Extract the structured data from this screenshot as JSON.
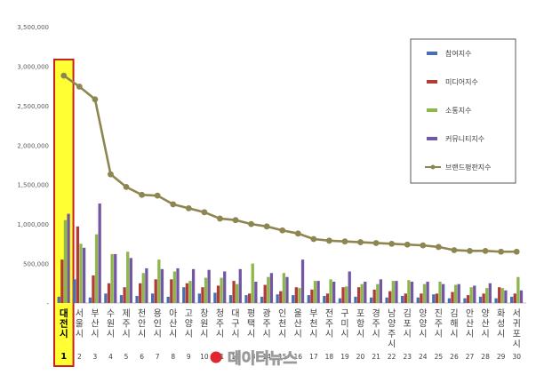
{
  "chart_data": {
    "type": "bar",
    "ylim": [
      0,
      3500000
    ],
    "yticks": [
      {
        "value": 0,
        "label": "-"
      },
      {
        "value": 500000,
        "label": "500,000"
      },
      {
        "value": 1000000,
        "label": "1,000,000"
      },
      {
        "value": 1500000,
        "label": "1,500,000"
      },
      {
        "value": 2000000,
        "label": "2,000,000"
      },
      {
        "value": 2500000,
        "label": "2,500,000"
      },
      {
        "value": 3000000,
        "label": "3,000,000"
      },
      {
        "value": 3500000,
        "label": "3,500,000"
      }
    ],
    "grid": false,
    "legend_position": "top-right",
    "categories": [
      "대전시",
      "서울시",
      "부산시",
      "수원시",
      "제주시",
      "천안시",
      "용인시",
      "아산시",
      "고양시",
      "창원시",
      "청주시",
      "대구시",
      "평택시",
      "광주시",
      "인천시",
      "울산시",
      "부천시",
      "전주시",
      "구미시",
      "포항시",
      "경주시",
      "남양주시",
      "김포시",
      "양양시",
      "진주시",
      "김해시",
      "안산시",
      "양산시",
      "화성시",
      "서귀포시"
    ],
    "ranks": [
      "1",
      "2",
      "3",
      "4",
      "5",
      "6",
      "7",
      "8",
      "9",
      "10",
      "11",
      "12",
      "13",
      "14",
      "15",
      "16",
      "17",
      "18",
      "19",
      "20",
      "21",
      "22",
      "23",
      "24",
      "25",
      "26",
      "27",
      "28",
      "29",
      "30"
    ],
    "highlight_index": 0,
    "series": [
      {
        "name": "참여지수",
        "type": "bar",
        "color": "#4a6fb0",
        "values": [
          80000,
          300000,
          70000,
          120000,
          100000,
          90000,
          120000,
          80000,
          200000,
          120000,
          130000,
          100000,
          100000,
          80000,
          110000,
          100000,
          100000,
          90000,
          60000,
          80000,
          70000,
          70000,
          90000,
          70000,
          110000,
          60000,
          60000,
          80000,
          60000,
          80000
        ]
      },
      {
        "name": "미디어지수",
        "type": "bar",
        "color": "#b23b36",
        "values": [
          550000,
          970000,
          350000,
          250000,
          200000,
          250000,
          300000,
          300000,
          250000,
          200000,
          220000,
          280000,
          120000,
          230000,
          150000,
          200000,
          170000,
          120000,
          200000,
          200000,
          170000,
          150000,
          120000,
          120000,
          120000,
          140000,
          100000,
          120000,
          200000,
          120000
        ]
      },
      {
        "name": "소통지수",
        "type": "bar",
        "color": "#8db64d",
        "values": [
          1050000,
          750000,
          870000,
          620000,
          650000,
          380000,
          550000,
          400000,
          280000,
          320000,
          320000,
          240000,
          500000,
          330000,
          380000,
          190000,
          280000,
          300000,
          210000,
          240000,
          240000,
          280000,
          290000,
          240000,
          270000,
          230000,
          200000,
          190000,
          190000,
          330000
        ]
      },
      {
        "name": "커뮤니티지수",
        "type": "bar",
        "color": "#7457a3",
        "values": [
          1130000,
          700000,
          1260000,
          620000,
          570000,
          440000,
          430000,
          440000,
          430000,
          420000,
          400000,
          430000,
          270000,
          380000,
          330000,
          550000,
          280000,
          270000,
          400000,
          270000,
          300000,
          280000,
          270000,
          270000,
          240000,
          240000,
          220000,
          250000,
          160000,
          160000
        ]
      },
      {
        "name": "브랜드평판지수",
        "type": "line",
        "color": "#8d8650",
        "values": [
          2880000,
          2740000,
          2580000,
          1630000,
          1470000,
          1370000,
          1360000,
          1250000,
          1200000,
          1150000,
          1070000,
          1050000,
          1000000,
          970000,
          920000,
          880000,
          810000,
          790000,
          780000,
          770000,
          760000,
          750000,
          740000,
          730000,
          710000,
          670000,
          660000,
          660000,
          650000,
          650000
        ]
      }
    ]
  },
  "watermark": {
    "text": "데이터뉴스"
  }
}
